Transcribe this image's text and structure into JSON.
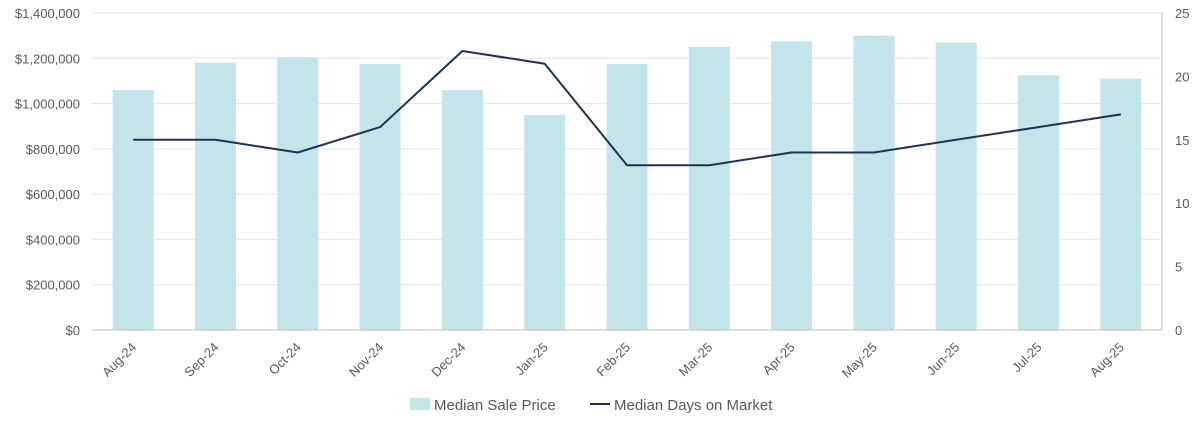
{
  "chart_data": {
    "type": "bar",
    "categories": [
      "Aug-24",
      "Sep-24",
      "Oct-24",
      "Nov-24",
      "Dec-24",
      "Jan-25",
      "Feb-25",
      "Mar-25",
      "Apr-25",
      "May-25",
      "Jun-25",
      "Jul-25",
      "Aug-25"
    ],
    "series": [
      {
        "name": "Median Sale Price",
        "type": "bar",
        "axis": "left",
        "values": [
          1060000,
          1180000,
          1205000,
          1175000,
          1060000,
          950000,
          1175000,
          1250000,
          1275000,
          1300000,
          1270000,
          1125000,
          1110000
        ]
      },
      {
        "name": "Median Days on Market",
        "type": "line",
        "axis": "right",
        "values": [
          15,
          15,
          14,
          16,
          22,
          21,
          13,
          13,
          14,
          14,
          15,
          16,
          17
        ]
      }
    ],
    "y_left": {
      "min": 0,
      "max": 1400000,
      "ticks": [
        0,
        200000,
        400000,
        600000,
        800000,
        1000000,
        1200000,
        1400000
      ],
      "tick_labels": [
        "$0",
        "$200,000",
        "$400,000",
        "$600,000",
        "$800,000",
        "$1,000,000",
        "$1,200,000",
        "$1,400,000"
      ]
    },
    "y_right": {
      "min": 0,
      "max": 25,
      "ticks": [
        0,
        5,
        10,
        15,
        20,
        25
      ],
      "tick_labels": [
        "0",
        "5",
        "10",
        "15",
        "20",
        "25"
      ]
    },
    "title": "",
    "xlabel": "",
    "ylabel": "",
    "grid": true,
    "legend_position": "bottom",
    "colors": {
      "bar": "#c2e4ea",
      "line": "#1f3350",
      "grid": "#e6e6e6",
      "axis": "#bfbfbf",
      "text": "#595959"
    }
  }
}
